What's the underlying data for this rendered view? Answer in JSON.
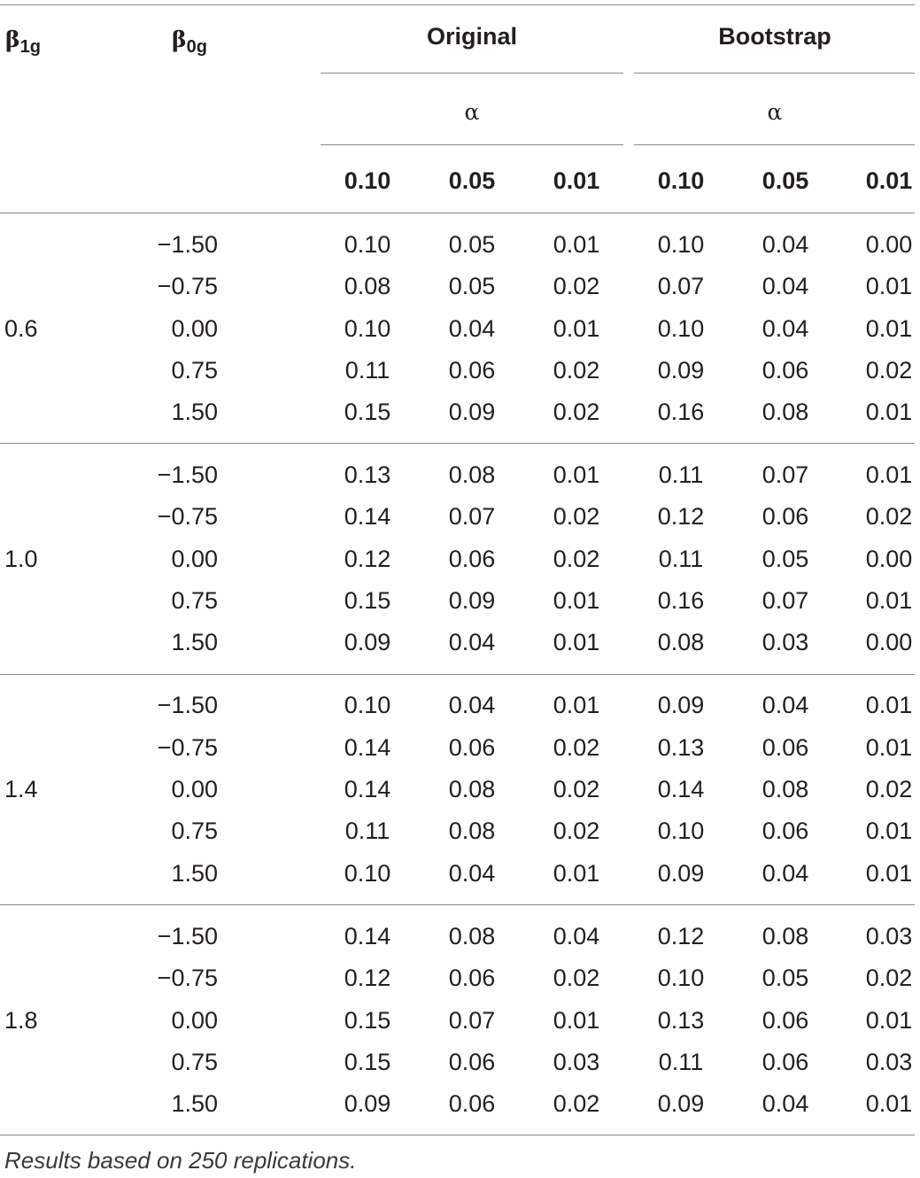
{
  "header": {
    "col_b1": "β",
    "col_b1_sub": "1g",
    "col_b0": "β",
    "col_b0_sub": "0g",
    "group_original": "Original",
    "group_bootstrap": "Bootstrap",
    "alpha_original": "α",
    "alpha_bootstrap": "α",
    "levels": [
      "0.10",
      "0.05",
      "0.01",
      "0.10",
      "0.05",
      "0.01"
    ]
  },
  "groups": [
    {
      "b1": "0.6",
      "rows": [
        {
          "b0": "−1.50",
          "vals": [
            "0.10",
            "0.05",
            "0.01",
            "0.10",
            "0.04",
            "0.00"
          ]
        },
        {
          "b0": "−0.75",
          "vals": [
            "0.08",
            "0.05",
            "0.02",
            "0.07",
            "0.04",
            "0.01"
          ]
        },
        {
          "b0": "0.00",
          "vals": [
            "0.10",
            "0.04",
            "0.01",
            "0.10",
            "0.04",
            "0.01"
          ]
        },
        {
          "b0": "0.75",
          "vals": [
            "0.11",
            "0.06",
            "0.02",
            "0.09",
            "0.06",
            "0.02"
          ]
        },
        {
          "b0": "1.50",
          "vals": [
            "0.15",
            "0.09",
            "0.02",
            "0.16",
            "0.08",
            "0.01"
          ]
        }
      ]
    },
    {
      "b1": "1.0",
      "rows": [
        {
          "b0": "−1.50",
          "vals": [
            "0.13",
            "0.08",
            "0.01",
            "0.11",
            "0.07",
            "0.01"
          ]
        },
        {
          "b0": "−0.75",
          "vals": [
            "0.14",
            "0.07",
            "0.02",
            "0.12",
            "0.06",
            "0.02"
          ]
        },
        {
          "b0": "0.00",
          "vals": [
            "0.12",
            "0.06",
            "0.02",
            "0.11",
            "0.05",
            "0.00"
          ]
        },
        {
          "b0": "0.75",
          "vals": [
            "0.15",
            "0.09",
            "0.01",
            "0.16",
            "0.07",
            "0.01"
          ]
        },
        {
          "b0": "1.50",
          "vals": [
            "0.09",
            "0.04",
            "0.01",
            "0.08",
            "0.03",
            "0.00"
          ]
        }
      ]
    },
    {
      "b1": "1.4",
      "rows": [
        {
          "b0": "−1.50",
          "vals": [
            "0.10",
            "0.04",
            "0.01",
            "0.09",
            "0.04",
            "0.01"
          ]
        },
        {
          "b0": "−0.75",
          "vals": [
            "0.14",
            "0.06",
            "0.02",
            "0.13",
            "0.06",
            "0.01"
          ]
        },
        {
          "b0": "0.00",
          "vals": [
            "0.14",
            "0.08",
            "0.02",
            "0.14",
            "0.08",
            "0.02"
          ]
        },
        {
          "b0": "0.75",
          "vals": [
            "0.11",
            "0.08",
            "0.02",
            "0.10",
            "0.06",
            "0.01"
          ]
        },
        {
          "b0": "1.50",
          "vals": [
            "0.10",
            "0.04",
            "0.01",
            "0.09",
            "0.04",
            "0.01"
          ]
        }
      ]
    },
    {
      "b1": "1.8",
      "rows": [
        {
          "b0": "−1.50",
          "vals": [
            "0.14",
            "0.08",
            "0.04",
            "0.12",
            "0.08",
            "0.03"
          ]
        },
        {
          "b0": "−0.75",
          "vals": [
            "0.12",
            "0.06",
            "0.02",
            "0.10",
            "0.05",
            "0.02"
          ]
        },
        {
          "b0": "0.00",
          "vals": [
            "0.15",
            "0.07",
            "0.01",
            "0.13",
            "0.06",
            "0.01"
          ]
        },
        {
          "b0": "0.75",
          "vals": [
            "0.15",
            "0.06",
            "0.03",
            "0.11",
            "0.06",
            "0.03"
          ]
        },
        {
          "b0": "1.50",
          "vals": [
            "0.09",
            "0.06",
            "0.02",
            "0.09",
            "0.04",
            "0.01"
          ]
        }
      ]
    }
  ],
  "footnote": "Results based on 250 replications."
}
